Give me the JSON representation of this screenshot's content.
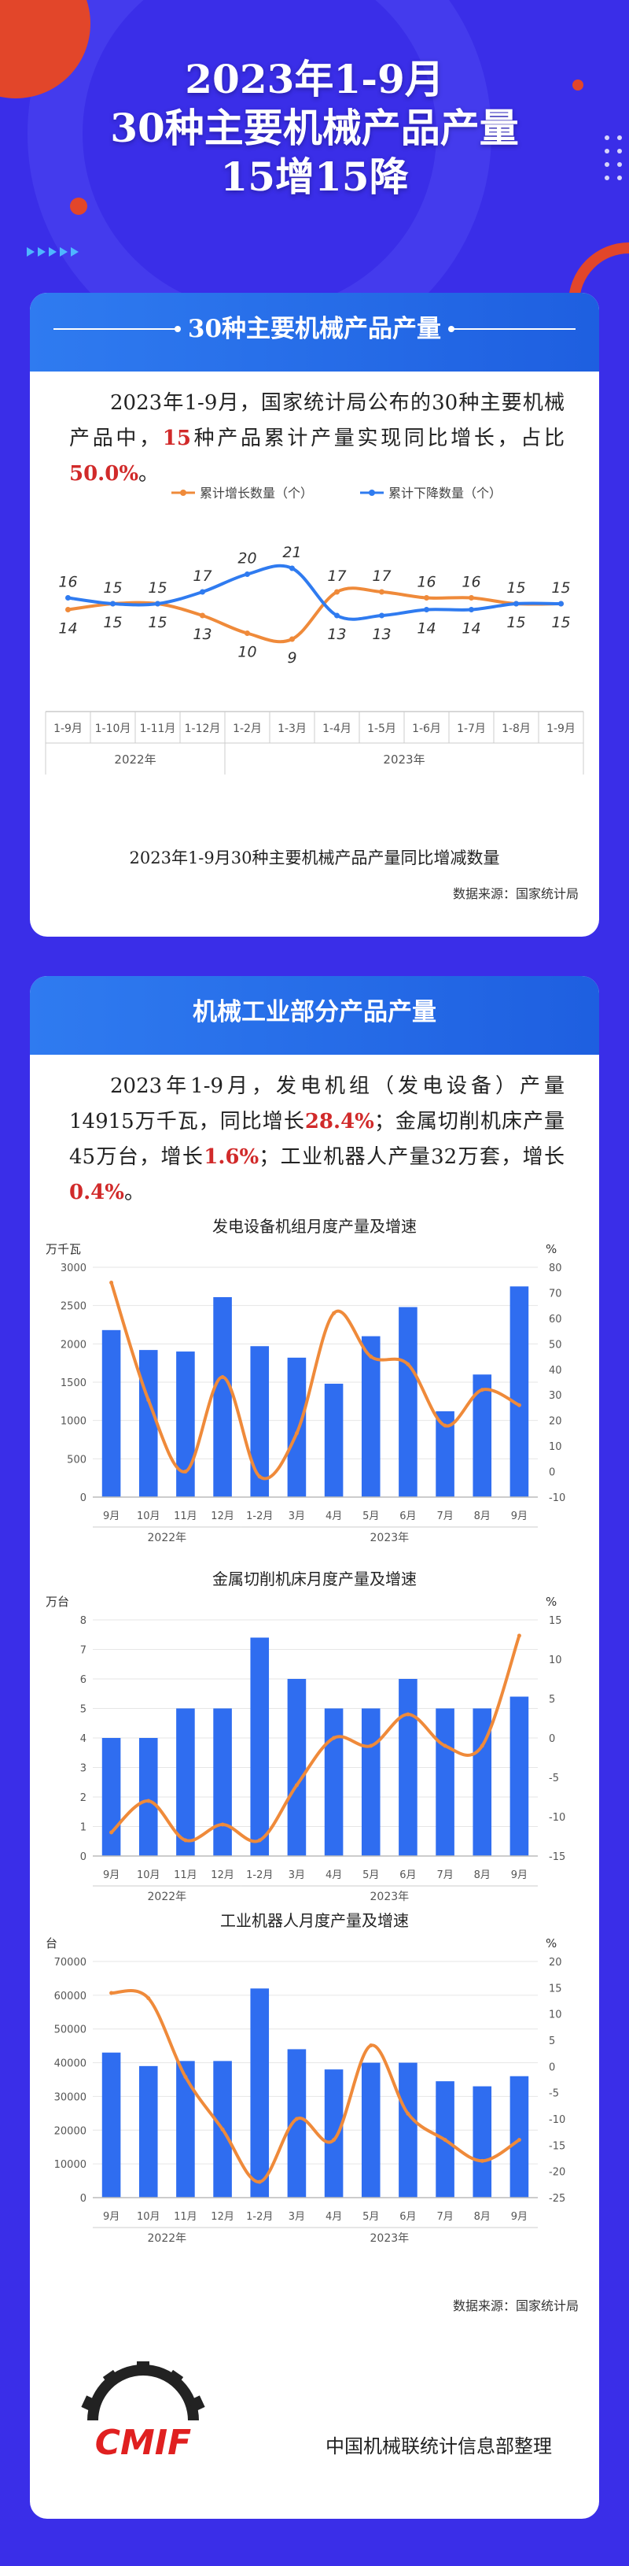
{
  "header": {
    "title_lines": [
      "2023年1-9月",
      "30种主要机械产品产量",
      "15增15降"
    ]
  },
  "section1": {
    "heading": "30种主要机械产品产量",
    "intro_a": "2023年1-9月，国家统计局公布的30种主要机械产品中，",
    "intro_num": "15",
    "intro_b": "种产品累计产量实现同比增长，占比",
    "intro_pct": "50.0%",
    "intro_end": "。",
    "caption": "2023年1-9月30种主要机械产品产量同比增减数量",
    "source": "数据来源：国家统计局"
  },
  "section2": {
    "heading": "机械工业部分产品产量",
    "p1": "2023年1-9月，发电机组（发电设备）产量14915万千瓦，同比增长",
    "v1": "28.4%",
    "p2": "；金属切削机床产量45万台，增长",
    "v2": "1.6%",
    "p3": "；工业机器人产量32万套，增长",
    "v3": "0.4%",
    "p4": "。",
    "source": "数据来源：国家统计局",
    "footer": "中国机械联统计信息部整理"
  },
  "logo": {
    "text": "CMIF"
  },
  "colors": {
    "bar": "#2f6df0",
    "line": "#ef8a3a",
    "accent": "#d12a2a",
    "down": "#2f7bf0"
  },
  "chart_data": [
    {
      "type": "line",
      "title": "2023年1-9月30种主要机械产品产量同比增减数量",
      "x": [
        "1-9月",
        "1-10月",
        "1-11月",
        "1-12月",
        "1-2月",
        "1-3月",
        "1-4月",
        "1-5月",
        "1-6月",
        "1-7月",
        "1-8月",
        "1-9月"
      ],
      "groups": [
        {
          "label": "2022年",
          "from": 0,
          "to": 3
        },
        {
          "label": "2023年",
          "from": 4,
          "to": 11
        }
      ],
      "series": [
        {
          "name": "累计增长数量（个）",
          "color": "#ef8a3a",
          "values": [
            14,
            15,
            15,
            13,
            10,
            9,
            17,
            17,
            16,
            16,
            15,
            15
          ]
        },
        {
          "name": "累计下降数量（个）",
          "color": "#2f7bf0",
          "values": [
            16,
            15,
            15,
            17,
            20,
            21,
            13,
            13,
            14,
            14,
            15,
            15
          ]
        }
      ],
      "ylim": [
        5,
        25
      ],
      "legend": "top"
    },
    {
      "type": "bar",
      "title": "发电设备机组月度产量及增速",
      "ylabel": "万千瓦",
      "y2label": "%",
      "categories": [
        "9月",
        "10月",
        "11月",
        "12月",
        "1-2月",
        "3月",
        "4月",
        "5月",
        "6月",
        "7月",
        "8月",
        "9月"
      ],
      "groups": [
        {
          "label": "2022年",
          "from": 0,
          "to": 3
        },
        {
          "label": "2023年",
          "from": 4,
          "to": 11
        }
      ],
      "values": [
        2180,
        1920,
        1900,
        2610,
        1970,
        1820,
        1480,
        2100,
        2480,
        1120,
        1600,
        2750
      ],
      "growth": [
        74,
        28,
        0,
        37,
        -2,
        15,
        62,
        45,
        42,
        18,
        32,
        26
      ],
      "ylim": [
        0,
        3000
      ],
      "y2lim": [
        -10,
        80
      ],
      "yticks": [
        0,
        500,
        1000,
        1500,
        2000,
        2500,
        3000
      ],
      "y2ticks": [
        -10,
        0,
        10,
        20,
        30,
        40,
        50,
        60,
        70,
        80
      ]
    },
    {
      "type": "bar",
      "title": "金属切削机床月度产量及增速",
      "ylabel": "万台",
      "y2label": "%",
      "categories": [
        "9月",
        "10月",
        "11月",
        "12月",
        "1-2月",
        "3月",
        "4月",
        "5月",
        "6月",
        "7月",
        "8月",
        "9月"
      ],
      "groups": [
        {
          "label": "2022年",
          "from": 0,
          "to": 3
        },
        {
          "label": "2023年",
          "from": 4,
          "to": 11
        }
      ],
      "values": [
        4,
        4,
        5,
        5,
        7.4,
        6,
        5,
        5,
        6,
        5,
        5,
        5.4
      ],
      "growth": [
        -12,
        -8,
        -13,
        -11,
        -13,
        -6,
        0,
        -1,
        3,
        -1,
        -1,
        13
      ],
      "ylim": [
        0,
        8
      ],
      "y2lim": [
        -15,
        15
      ],
      "yticks": [
        0,
        1,
        2,
        3,
        4,
        5,
        6,
        7,
        8
      ],
      "y2ticks": [
        -15,
        -10,
        -5,
        0,
        5,
        10,
        15
      ]
    },
    {
      "type": "bar",
      "title": "工业机器人月度产量及增速",
      "ylabel": "台",
      "y2label": "%",
      "categories": [
        "9月",
        "10月",
        "11月",
        "12月",
        "1-2月",
        "3月",
        "4月",
        "5月",
        "6月",
        "7月",
        "8月",
        "9月"
      ],
      "groups": [
        {
          "label": "2022年",
          "from": 0,
          "to": 3
        },
        {
          "label": "2023年",
          "from": 4,
          "to": 11
        }
      ],
      "values": [
        43000,
        39000,
        40500,
        40500,
        62000,
        44000,
        38000,
        40000,
        40000,
        34500,
        33000,
        36000
      ],
      "growth": [
        14,
        13,
        -2,
        -12,
        -22,
        -10,
        -14,
        4,
        -9,
        -14,
        -18,
        -14
      ],
      "ylim": [
        0,
        70000
      ],
      "y2lim": [
        -25,
        20
      ],
      "yticks": [
        0,
        10000,
        20000,
        30000,
        40000,
        50000,
        60000,
        70000
      ],
      "y2ticks": [
        -25,
        -20,
        -15,
        -10,
        -5,
        0,
        5,
        10,
        15,
        20
      ]
    }
  ]
}
